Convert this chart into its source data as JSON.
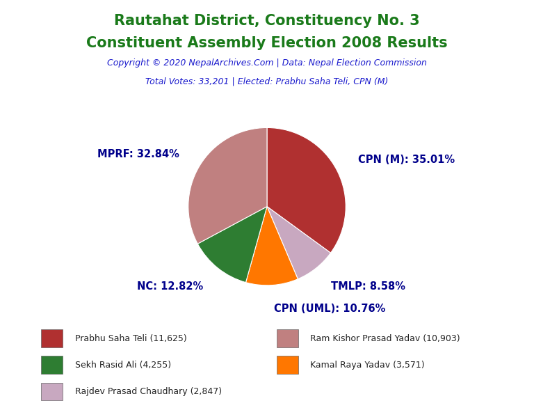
{
  "title_line1": "Rautahat District, Constituency No. 3",
  "title_line2": "Constituent Assembly Election 2008 Results",
  "title_color": "#1a7a1a",
  "copyright_text": "Copyright © 2020 NepalArchives.Com | Data: Nepal Election Commission",
  "copyright_color": "#1a1acd",
  "total_votes_text": "Total Votes: 33,201 | Elected: Prabhu Saha Teli, CPN (M)",
  "total_votes_color": "#1a1acd",
  "slices": [
    {
      "label": "CPN (M): 35.01%",
      "value": 11625,
      "color": "#B03030"
    },
    {
      "label": "TMLP: 8.58%",
      "value": 2847,
      "color": "#C8A8C0"
    },
    {
      "label": "CPN (UML): 10.76%",
      "value": 3571,
      "color": "#FF7700"
    },
    {
      "label": "NC: 12.82%",
      "value": 4255,
      "color": "#2E7D32"
    },
    {
      "label": "MPRF: 32.84%",
      "value": 10903,
      "color": "#C08080"
    }
  ],
  "legend_entries": [
    {
      "label": "Prabhu Saha Teli (11,625)",
      "color": "#B03030"
    },
    {
      "label": "Sekh Rasid Ali (4,255)",
      "color": "#2E7D32"
    },
    {
      "label": "Rajdev Prasad Chaudhary (2,847)",
      "color": "#C8A8C0"
    },
    {
      "label": "Ram Kishor Prasad Yadav (10,903)",
      "color": "#C08080"
    },
    {
      "label": "Kamal Raya Yadav (3,571)",
      "color": "#FF7700"
    }
  ],
  "label_color": "#00008B",
  "label_fontsize": 10.5,
  "background_color": "#FFFFFF"
}
